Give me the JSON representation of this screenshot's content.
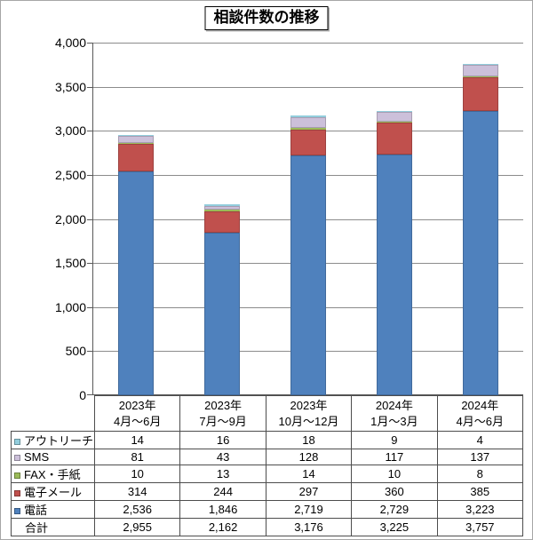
{
  "title": "相談件数の推移",
  "chart_data": {
    "type": "bar",
    "stacked": true,
    "title": "相談件数の推移",
    "categories": [
      {
        "line1": "2023年",
        "line2": "4月～6月"
      },
      {
        "line1": "2023年",
        "line2": "7月～9月"
      },
      {
        "line1": "2023年",
        "line2": "10月～12月"
      },
      {
        "line1": "2024年",
        "line2": "1月～3月"
      },
      {
        "line1": "2024年",
        "line2": "4月～6月"
      }
    ],
    "series": [
      {
        "key": "phone",
        "name": "電話",
        "color": "#4F81BD",
        "values": [
          2536,
          1846,
          2719,
          2729,
          3223
        ]
      },
      {
        "key": "email",
        "name": "電子メール",
        "color": "#C0504D",
        "values": [
          314,
          244,
          297,
          360,
          385
        ]
      },
      {
        "key": "fax-letter",
        "name": "FAX・手紙",
        "color": "#9BBB59",
        "values": [
          10,
          13,
          14,
          10,
          8
        ]
      },
      {
        "key": "sms",
        "name": "SMS",
        "color": "#CCC0DA",
        "values": [
          81,
          43,
          128,
          117,
          137
        ]
      },
      {
        "key": "outreach",
        "name": "アウトリーチ",
        "color": "#92CDDC",
        "values": [
          14,
          16,
          18,
          9,
          4
        ]
      }
    ],
    "totals": {
      "label": "合計",
      "values": [
        2955,
        2162,
        3176,
        3225,
        3757
      ]
    },
    "y_axis": {
      "min": 0,
      "max": 4000,
      "step": 500,
      "tick_labels": [
        "0",
        "500",
        "1,000",
        "1,500",
        "2,000",
        "2,500",
        "3,000",
        "3,500",
        "4,000"
      ]
    },
    "grid": true,
    "legend_position": "table-left-column"
  },
  "table": {
    "rows": [
      {
        "key": "outreach",
        "label": "アウトリーチ",
        "marker_color": "#92CDDC",
        "values": [
          "14",
          "16",
          "18",
          "9",
          "4"
        ]
      },
      {
        "key": "sms",
        "label": "SMS",
        "marker_color": "#CCC0DA",
        "values": [
          "81",
          "43",
          "128",
          "117",
          "137"
        ]
      },
      {
        "key": "fax-letter",
        "label": "FAX・手紙",
        "marker_color": "#9BBB59",
        "values": [
          "10",
          "13",
          "14",
          "10",
          "8"
        ]
      },
      {
        "key": "email",
        "label": "電子メール",
        "marker_color": "#C0504D",
        "values": [
          "314",
          "244",
          "297",
          "360",
          "385"
        ]
      },
      {
        "key": "phone",
        "label": "電話",
        "marker_color": "#4F81BD",
        "values": [
          "2,536",
          "1,846",
          "2,719",
          "2,729",
          "3,223"
        ]
      },
      {
        "key": "total",
        "label": "合計",
        "marker_color": null,
        "values": [
          "2,955",
          "2,162",
          "3,176",
          "3,225",
          "3,757"
        ]
      }
    ]
  },
  "colors": {
    "grid_line": "#8c8c8c",
    "axis_line": "#595959",
    "table_border": "#4d4d4d",
    "frame_border": "#a6a6a6",
    "background": "#ffffff",
    "title_border": "#000000"
  }
}
